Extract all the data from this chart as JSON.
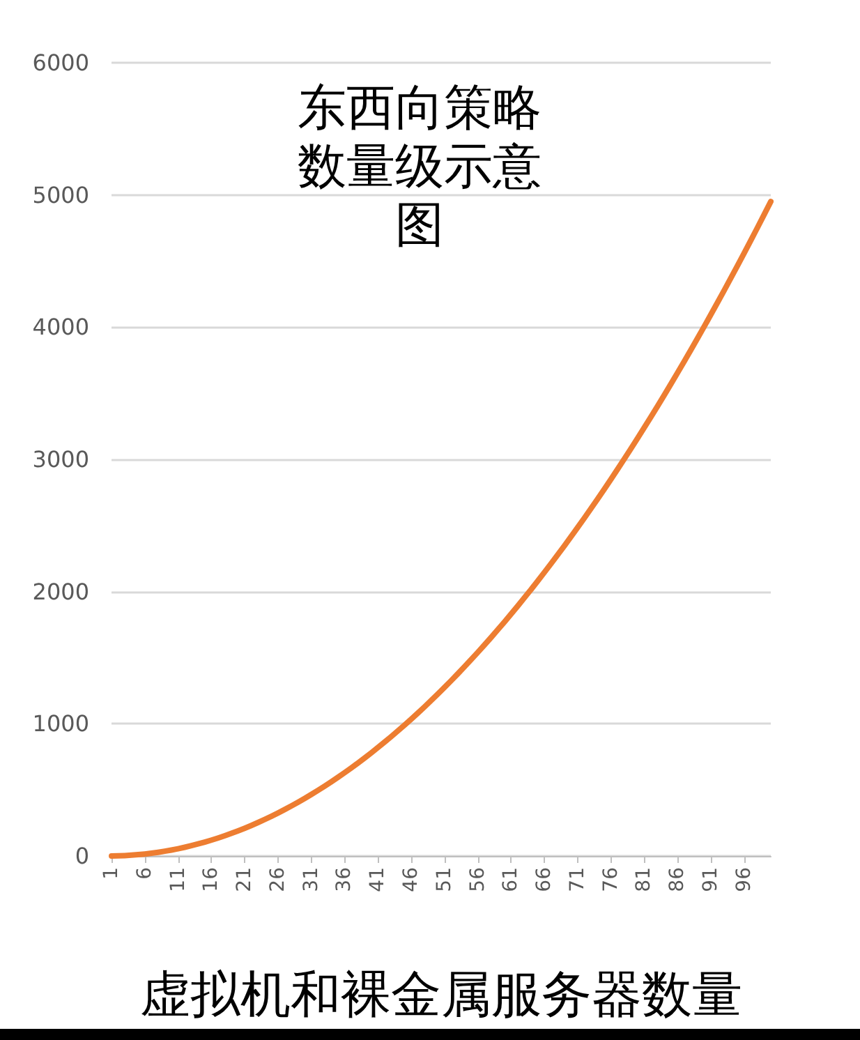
{
  "chart_data": {
    "type": "line",
    "title": "东西向策略数量级示意图",
    "xlabel": "虚拟机和裸金属服务器数量",
    "categories": [
      "1",
      null,
      null,
      null,
      null,
      "6",
      null,
      null,
      null,
      null,
      "11",
      null,
      null,
      null,
      null,
      "16",
      null,
      null,
      null,
      null,
      "21",
      null,
      null,
      null,
      null,
      "26",
      null,
      null,
      null,
      null,
      "31",
      null,
      null,
      null,
      null,
      "36",
      null,
      null,
      null,
      null,
      "41",
      null,
      null,
      null,
      null,
      "46",
      null,
      null,
      null,
      null,
      "51",
      null,
      null,
      null,
      null,
      "56",
      null,
      null,
      null,
      null,
      "61",
      null,
      null,
      null,
      null,
      "66",
      null,
      null,
      null,
      null,
      "71",
      null,
      null,
      null,
      null,
      "76",
      null,
      null,
      null,
      null,
      "81",
      null,
      null,
      null,
      null,
      "86",
      null,
      null,
      null,
      null,
      "91",
      null,
      null,
      null,
      null,
      "96",
      null,
      null,
      null,
      null
    ],
    "series": [
      {
        "color": "#ed7d31",
        "values": [
          0,
          1,
          3,
          6,
          10,
          15,
          21,
          28,
          36,
          45,
          55,
          66,
          78,
          91,
          105,
          120,
          136,
          153,
          171,
          190,
          210,
          231,
          253,
          276,
          300,
          325,
          351,
          378,
          406,
          435,
          465,
          496,
          528,
          561,
          595,
          630,
          666,
          703,
          741,
          780,
          820,
          861,
          903,
          946,
          990,
          1035,
          1081,
          1128,
          1176,
          1225,
          1275,
          1326,
          1378,
          1431,
          1485,
          1540,
          1596,
          1653,
          1711,
          1770,
          1830,
          1891,
          1953,
          2016,
          2080,
          2145,
          2211,
          2278,
          2346,
          2415,
          2485,
          2556,
          2628,
          2701,
          2775,
          2850,
          2926,
          3003,
          3081,
          3160,
          3240,
          3321,
          3403,
          3486,
          3570,
          3655,
          3741,
          3828,
          3916,
          4005,
          4095,
          4186,
          4278,
          4371,
          4465,
          4560,
          4656,
          4753,
          4851,
          4950
        ]
      }
    ],
    "ylim": [
      0,
      6000
    ],
    "yticks": [
      0,
      1000,
      2000,
      3000,
      4000,
      5000,
      6000
    ],
    "grid": "y",
    "marker": "none",
    "line_style": "solid"
  }
}
